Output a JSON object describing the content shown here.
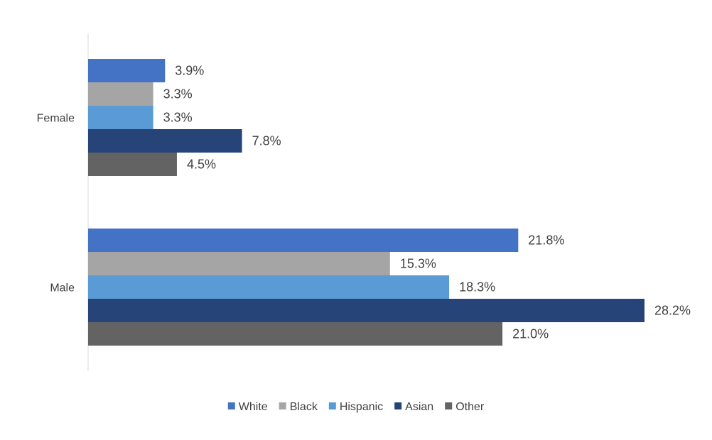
{
  "chart_data": {
    "type": "bar",
    "orientation": "horizontal",
    "categories": [
      "Female",
      "Male"
    ],
    "series": [
      {
        "name": "White",
        "color": "#4472C4",
        "values": [
          3.9,
          21.8
        ],
        "labels": [
          "3.9%",
          "21.8%"
        ]
      },
      {
        "name": "Black",
        "color": "#A5A5A5",
        "values": [
          3.3,
          15.3
        ],
        "labels": [
          "3.3%",
          "15.3%"
        ]
      },
      {
        "name": "Hispanic",
        "color": "#5B9BD5",
        "values": [
          3.3,
          18.3
        ],
        "labels": [
          "3.3%",
          "18.3%"
        ]
      },
      {
        "name": "Asian",
        "color": "#264478",
        "values": [
          7.8,
          28.2
        ],
        "labels": [
          "7.8%",
          "28.2%"
        ]
      },
      {
        "name": "Other",
        "color": "#636363",
        "values": [
          4.5,
          21.0
        ],
        "labels": [
          "4.5%",
          "21.0%"
        ]
      }
    ],
    "xlim": [
      0,
      28.2
    ],
    "grid": false,
    "legend_position": "bottom"
  }
}
